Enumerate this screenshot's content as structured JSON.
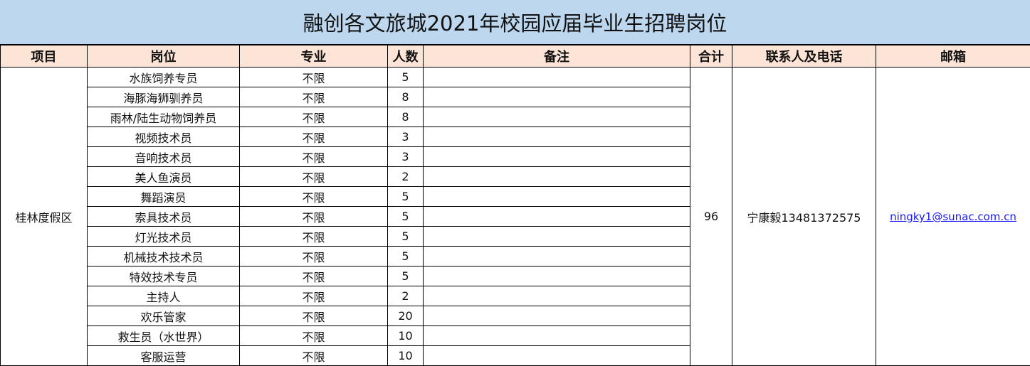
{
  "title": "融创各文旅城2021年校园应届毕业生招聘岗位",
  "headers": [
    "项目",
    "岗位",
    "专业",
    "人数",
    "备注",
    "合计",
    "联系人及电话",
    "邮箱"
  ],
  "project": "桂林度假区",
  "total": "96",
  "contact": "宁康毅13481372575",
  "email": "ningky1@sunac.com.cn",
  "rows": [
    {
      "position": "水族饲养专员",
      "major": "不限",
      "count": "5",
      "note": ""
    },
    {
      "position": "海豚海狮驯养员",
      "major": "不限",
      "count": "8",
      "note": ""
    },
    {
      "position": "雨林/陆生动物饲养员",
      "major": "不限",
      "count": "8",
      "note": ""
    },
    {
      "position": "视频技术员",
      "major": "不限",
      "count": "3",
      "note": ""
    },
    {
      "position": "音响技术员",
      "major": "不限",
      "count": "3",
      "note": ""
    },
    {
      "position": "美人鱼演员",
      "major": "不限",
      "count": "2",
      "note": ""
    },
    {
      "position": "舞蹈演员",
      "major": "不限",
      "count": "5",
      "note": ""
    },
    {
      "position": "索具技术员",
      "major": "不限",
      "count": "5",
      "note": ""
    },
    {
      "position": "灯光技术员",
      "major": "不限",
      "count": "5",
      "note": ""
    },
    {
      "position": "机械技术技术员",
      "major": "不限",
      "count": "5",
      "note": ""
    },
    {
      "position": "特效技术专员",
      "major": "不限",
      "count": "5",
      "note": ""
    },
    {
      "position": "主持人",
      "major": "不限",
      "count": "2",
      "note": ""
    },
    {
      "position": "欢乐管家",
      "major": "不限",
      "count": "20",
      "note": ""
    },
    {
      "position": "救生员（水世界）",
      "major": "不限",
      "count": "10",
      "note": ""
    },
    {
      "position": "客服运营",
      "major": "不限",
      "count": "10",
      "note": ""
    }
  ],
  "colors": {
    "title_bg": "#BDD7EE",
    "header_bg": "#FCE4D6",
    "link": "#1a1aff"
  }
}
